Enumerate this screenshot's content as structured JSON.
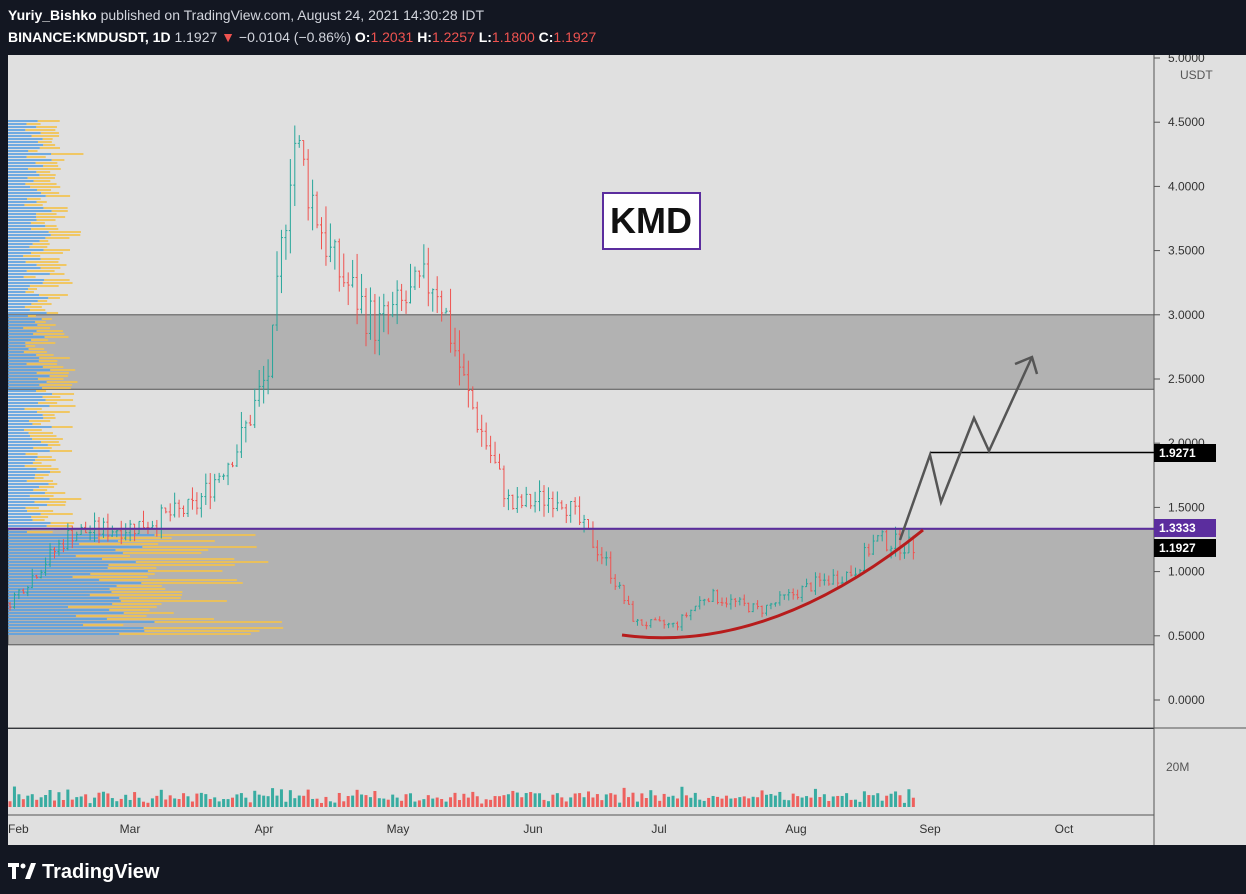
{
  "header": {
    "author": "Yuriy_Bishko",
    "published_text": "published on TradingView.com, August 24, 2021 14:30:28 IDT",
    "symbol": "BINANCE:KMDUSDT, 1D",
    "last_price": "1.1927",
    "change": "−0.0104 (−0.86%)",
    "open_label": "O:",
    "open": "1.2031",
    "high_label": "H:",
    "high": "1.2257",
    "low_label": "L:",
    "low": "1.1800",
    "close_label": "C:",
    "close": "1.1927"
  },
  "chart": {
    "ticker_label": "KMD",
    "currency": "USDT",
    "price_ticks": [
      "5.0000",
      "4.5000",
      "4.0000",
      "3.5000",
      "3.0000",
      "2.5000",
      "2.0000",
      "1.5000",
      "1.0000",
      "0.5000",
      "0.0000"
    ],
    "time_labels": [
      "Feb",
      "Mar",
      "Apr",
      "May",
      "Jun",
      "Jul",
      "Aug",
      "Sep",
      "Oct"
    ],
    "volume_label": "20M",
    "price_labels": {
      "target": "1.9271",
      "resistance": "1.3333",
      "current": "1.1927"
    },
    "colors": {
      "up": "#26a69a",
      "down": "#ef5350",
      "zone": "#b2b2b2",
      "resistance_line": "#5b2d9e",
      "curve": "#b71c1c",
      "arrow": "#555555",
      "background": "#e0e0e0"
    }
  },
  "chart_data": {
    "type": "candlestick",
    "symbol": "KMDUSDT",
    "interval": "1D",
    "ylim": [
      -0.2,
      5.05
    ],
    "zones": [
      [
        2.42,
        3.0
      ],
      [
        0.43,
        1.33
      ]
    ],
    "levels": {
      "resistance": 1.3333,
      "target": 1.9271
    },
    "close_series": {
      "dates": [
        "2021-02-01",
        "2021-02-15",
        "2021-03-01",
        "2021-03-15",
        "2021-03-25",
        "2021-04-01",
        "2021-04-06",
        "2021-04-15",
        "2021-04-25",
        "2021-05-08",
        "2021-05-15",
        "2021-05-25",
        "2021-06-05",
        "2021-06-15",
        "2021-06-22",
        "2021-07-01",
        "2021-07-08",
        "2021-07-20",
        "2021-08-01",
        "2021-08-10",
        "2021-08-15",
        "2021-08-24"
      ],
      "values": [
        0.75,
        1.3,
        1.35,
        1.5,
        2.0,
        2.6,
        4.4,
        3.4,
        2.9,
        3.3,
        2.4,
        1.5,
        1.6,
        1.1,
        0.6,
        0.58,
        0.82,
        0.7,
        0.9,
        1.0,
        1.25,
        1.19
      ]
    }
  }
}
